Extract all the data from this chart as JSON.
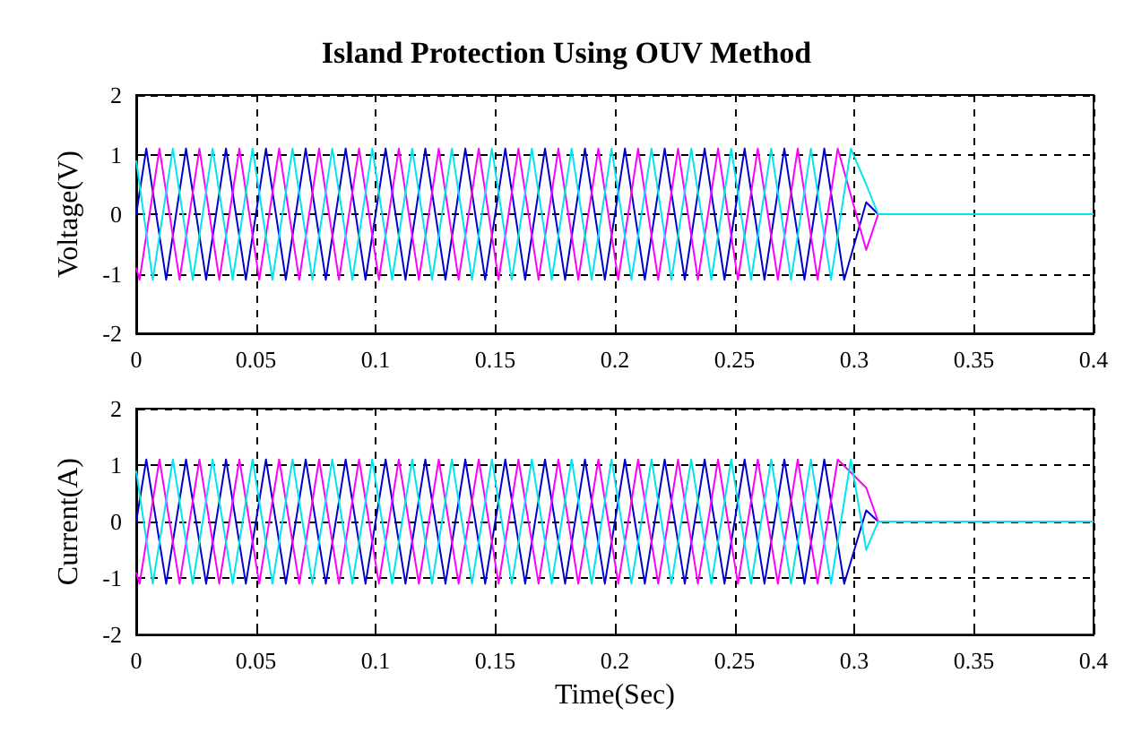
{
  "chart_data": [
    {
      "type": "line",
      "title": "Island Protection Using OUV Method",
      "ylabel": "Voltage(V)",
      "xlim": [
        0,
        0.4
      ],
      "xticks": [
        0,
        0.05,
        0.1,
        0.15,
        0.2,
        0.25,
        0.3,
        0.35,
        0.4
      ],
      "ylim": [
        -2,
        2
      ],
      "yticks": [
        -2,
        -1,
        0,
        1,
        2
      ],
      "grid": true,
      "marker": "none",
      "line_style": "solid",
      "series": [
        {
          "color": "#0000cc",
          "x": [
            0,
            0.0042,
            0.0125,
            0.0208,
            0.0292,
            0.0375,
            0.0458,
            0.0542,
            0.0625,
            0.0708,
            0.0792,
            0.0875,
            0.0958,
            0.1042,
            0.1125,
            0.1208,
            0.1292,
            0.1375,
            0.1458,
            0.1542,
            0.1625,
            0.1708,
            0.1792,
            0.1875,
            0.1958,
            0.2042,
            0.2125,
            0.2208,
            0.2292,
            0.2375,
            0.2458,
            0.2542,
            0.2625,
            0.2708,
            0.2792,
            0.2875,
            0.2958,
            0.305,
            0.31,
            0.4
          ],
          "values": [
            0,
            1.1,
            -1.1,
            1.1,
            -1.1,
            1.1,
            -1.1,
            1.1,
            -1.1,
            1.1,
            -1.1,
            1.1,
            -1.1,
            1.1,
            -1.1,
            1.1,
            -1.1,
            1.1,
            -1.1,
            1.1,
            -1.1,
            1.1,
            -1.1,
            1.1,
            -1.1,
            1.1,
            -1.1,
            1.1,
            -1.1,
            1.1,
            -1.1,
            1.1,
            -1.1,
            1.1,
            -1.1,
            1.1,
            -1.1,
            0.2,
            0,
            0
          ]
        },
        {
          "color": "#ff00ff",
          "x": [
            0,
            0.0014,
            0.0097,
            0.0181,
            0.0264,
            0.0347,
            0.0431,
            0.0514,
            0.0597,
            0.0681,
            0.0764,
            0.0847,
            0.0931,
            0.1014,
            0.1097,
            0.1181,
            0.1264,
            0.1347,
            0.1431,
            0.1514,
            0.1597,
            0.1681,
            0.1764,
            0.1847,
            0.1931,
            0.2014,
            0.2097,
            0.2181,
            0.2264,
            0.2347,
            0.2431,
            0.2514,
            0.2597,
            0.2681,
            0.2764,
            0.2847,
            0.2931,
            0.305,
            0.31,
            0.4
          ],
          "values": [
            -0.9,
            -1.1,
            1.1,
            -1.1,
            1.1,
            -1.1,
            1.1,
            -1.1,
            1.1,
            -1.1,
            1.1,
            -1.1,
            1.1,
            -1.1,
            1.1,
            -1.1,
            1.1,
            -1.1,
            1.1,
            -1.1,
            1.1,
            -1.1,
            1.1,
            -1.1,
            1.1,
            -1.1,
            1.1,
            -1.1,
            1.1,
            -1.1,
            1.1,
            -1.1,
            1.1,
            -1.1,
            1.1,
            -1.1,
            1.1,
            -0.6,
            0,
            0
          ]
        },
        {
          "color": "#00e5ee",
          "x": [
            0,
            0.0069,
            0.0153,
            0.0236,
            0.0319,
            0.0403,
            0.0486,
            0.0569,
            0.0653,
            0.0736,
            0.0819,
            0.0903,
            0.0986,
            0.1069,
            0.1153,
            0.1236,
            0.1319,
            0.1403,
            0.1486,
            0.1569,
            0.1653,
            0.1736,
            0.1819,
            0.1903,
            0.1986,
            0.2069,
            0.2153,
            0.2236,
            0.2319,
            0.2403,
            0.2486,
            0.2569,
            0.2653,
            0.2736,
            0.2819,
            0.2903,
            0.2986,
            0.305,
            0.31,
            0.4
          ],
          "values": [
            0.9,
            -1.1,
            1.1,
            -1.1,
            1.1,
            -1.1,
            1.1,
            -1.1,
            1.1,
            -1.1,
            1.1,
            -1.1,
            1.1,
            -1.1,
            1.1,
            -1.1,
            1.1,
            -1.1,
            1.1,
            -1.1,
            1.1,
            -1.1,
            1.1,
            -1.1,
            1.1,
            -1.1,
            1.1,
            -1.1,
            1.1,
            -1.1,
            1.1,
            -1.1,
            1.1,
            -1.1,
            1.1,
            -1.1,
            1.1,
            0.5,
            0,
            0
          ]
        }
      ]
    },
    {
      "type": "line",
      "xlabel": "Time(Sec)",
      "ylabel": "Current(A)",
      "xlim": [
        0,
        0.4
      ],
      "xticks": [
        0,
        0.05,
        0.1,
        0.15,
        0.2,
        0.25,
        0.3,
        0.35,
        0.4
      ],
      "ylim": [
        -2,
        2
      ],
      "yticks": [
        -2,
        -1,
        0,
        1,
        2
      ],
      "grid": true,
      "marker": "none",
      "line_style": "solid",
      "series": [
        {
          "color": "#0000cc",
          "x": [
            0,
            0.0042,
            0.0125,
            0.0208,
            0.0292,
            0.0375,
            0.0458,
            0.0542,
            0.0625,
            0.0708,
            0.0792,
            0.0875,
            0.0958,
            0.1042,
            0.1125,
            0.1208,
            0.1292,
            0.1375,
            0.1458,
            0.1542,
            0.1625,
            0.1708,
            0.1792,
            0.1875,
            0.1958,
            0.2042,
            0.2125,
            0.2208,
            0.2292,
            0.2375,
            0.2458,
            0.2542,
            0.2625,
            0.2708,
            0.2792,
            0.2875,
            0.2958,
            0.305,
            0.31,
            0.4
          ],
          "values": [
            0,
            1.1,
            -1.1,
            1.1,
            -1.1,
            1.1,
            -1.1,
            1.1,
            -1.1,
            1.1,
            -1.1,
            1.1,
            -1.1,
            1.1,
            -1.1,
            1.1,
            -1.1,
            1.1,
            -1.1,
            1.1,
            -1.1,
            1.1,
            -1.1,
            1.1,
            -1.1,
            1.1,
            -1.1,
            1.1,
            -1.1,
            1.1,
            -1.1,
            1.1,
            -1.1,
            1.1,
            -1.1,
            1.1,
            -1.1,
            0.2,
            0,
            0
          ]
        },
        {
          "color": "#ff00ff",
          "x": [
            0,
            0.0014,
            0.0097,
            0.0181,
            0.0264,
            0.0347,
            0.0431,
            0.0514,
            0.0597,
            0.0681,
            0.0764,
            0.0847,
            0.0931,
            0.1014,
            0.1097,
            0.1181,
            0.1264,
            0.1347,
            0.1431,
            0.1514,
            0.1597,
            0.1681,
            0.1764,
            0.1847,
            0.1931,
            0.2014,
            0.2097,
            0.2181,
            0.2264,
            0.2347,
            0.2431,
            0.2514,
            0.2597,
            0.2681,
            0.2764,
            0.2847,
            0.2931,
            0.305,
            0.31,
            0.4
          ],
          "values": [
            -0.9,
            -1.1,
            1.1,
            -1.1,
            1.1,
            -1.1,
            1.1,
            -1.1,
            1.1,
            -1.1,
            1.1,
            -1.1,
            1.1,
            -1.1,
            1.1,
            -1.1,
            1.1,
            -1.1,
            1.1,
            -1.1,
            1.1,
            -1.1,
            1.1,
            -1.1,
            1.1,
            -1.1,
            1.1,
            -1.1,
            1.1,
            -1.1,
            1.1,
            -1.1,
            1.1,
            -1.1,
            1.1,
            -1.1,
            1.1,
            0.6,
            0,
            0
          ]
        },
        {
          "color": "#00e5ee",
          "x": [
            0,
            0.0069,
            0.0153,
            0.0236,
            0.0319,
            0.0403,
            0.0486,
            0.0569,
            0.0653,
            0.0736,
            0.0819,
            0.0903,
            0.0986,
            0.1069,
            0.1153,
            0.1236,
            0.1319,
            0.1403,
            0.1486,
            0.1569,
            0.1653,
            0.1736,
            0.1819,
            0.1903,
            0.1986,
            0.2069,
            0.2153,
            0.2236,
            0.2319,
            0.2403,
            0.2486,
            0.2569,
            0.2653,
            0.2736,
            0.2819,
            0.2903,
            0.2986,
            0.305,
            0.31,
            0.4
          ],
          "values": [
            0.9,
            -1.1,
            1.1,
            -1.1,
            1.1,
            -1.1,
            1.1,
            -1.1,
            1.1,
            -1.1,
            1.1,
            -1.1,
            1.1,
            -1.1,
            1.1,
            -1.1,
            1.1,
            -1.1,
            1.1,
            -1.1,
            1.1,
            -1.1,
            1.1,
            -1.1,
            1.1,
            -1.1,
            1.1,
            -1.1,
            1.1,
            -1.1,
            1.1,
            -1.1,
            1.1,
            -1.1,
            1.1,
            -1.1,
            1.1,
            -0.5,
            0,
            0
          ]
        }
      ]
    }
  ]
}
